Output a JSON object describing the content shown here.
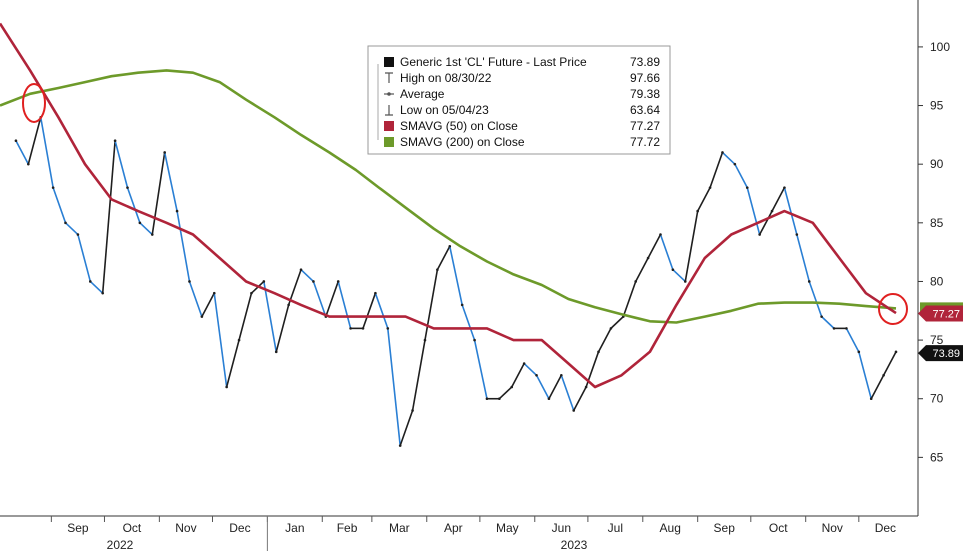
{
  "chart_data": {
    "type": "line",
    "title": "",
    "xlabel": "",
    "ylabel": "",
    "ylim": [
      60,
      104
    ],
    "grid": false,
    "y_axis_side": "right",
    "y_ticks": [
      "65",
      "70",
      "75",
      "80",
      "85",
      "90",
      "95",
      "100"
    ],
    "months": [
      "Sep",
      "Oct",
      "Nov",
      "Dec",
      "Jan",
      "Feb",
      "Mar",
      "Apr",
      "May",
      "Jun",
      "Jul",
      "Aug",
      "Sep",
      "Oct",
      "Nov",
      "Dec"
    ],
    "years": [
      "2022",
      "2023"
    ],
    "legend": {
      "placement": "top-center",
      "rows": [
        {
          "icon": "square-icon",
          "label": "Generic 1st 'CL' Future - Last Price",
          "value": "73.89",
          "color": "#111111"
        },
        {
          "icon": "high-marker-icon",
          "label": "High on 08/30/22",
          "value": "97.66",
          "color": "#555555"
        },
        {
          "icon": "average-marker-icon",
          "label": "Average",
          "value": "79.38",
          "color": "#555555"
        },
        {
          "icon": "low-marker-icon",
          "label": "Low on 05/04/23",
          "value": "63.64",
          "color": "#555555"
        },
        {
          "icon": "square-icon",
          "label": "SMAVG (50)  on Close",
          "value": "77.27",
          "color": "#b0243a"
        },
        {
          "icon": "square-icon",
          "label": "SMAVG (200)  on Close",
          "value": "77.72",
          "color": "#6d9a2a"
        }
      ]
    },
    "badges": [
      {
        "value": "77.27",
        "color": "#b0243a"
      },
      {
        "value": "73.89",
        "color": "#111111"
      }
    ],
    "series": [
      {
        "name": "Generic 1st 'CL' Future - Last Price",
        "color": "#1f1f1f",
        "down_color": "#2a7fd4",
        "x": [
          "2022-08-12",
          "2022-08-19",
          "2022-08-26",
          "2022-09-02",
          "2022-09-09",
          "2022-09-16",
          "2022-09-23",
          "2022-09-30",
          "2022-10-07",
          "2022-10-14",
          "2022-10-21",
          "2022-10-28",
          "2022-11-04",
          "2022-11-11",
          "2022-11-18",
          "2022-11-25",
          "2022-12-02",
          "2022-12-09",
          "2022-12-16",
          "2022-12-23",
          "2022-12-30",
          "2023-01-06",
          "2023-01-13",
          "2023-01-20",
          "2023-01-27",
          "2023-02-03",
          "2023-02-10",
          "2023-02-17",
          "2023-02-24",
          "2023-03-03",
          "2023-03-10",
          "2023-03-17",
          "2023-03-24",
          "2023-03-31",
          "2023-04-07",
          "2023-04-14",
          "2023-04-21",
          "2023-04-28",
          "2023-05-05",
          "2023-05-12",
          "2023-05-19",
          "2023-05-26",
          "2023-06-02",
          "2023-06-09",
          "2023-06-16",
          "2023-06-23",
          "2023-06-30",
          "2023-07-07",
          "2023-07-14",
          "2023-07-21",
          "2023-07-28",
          "2023-08-04",
          "2023-08-11",
          "2023-08-18",
          "2023-08-25",
          "2023-09-01",
          "2023-09-08",
          "2023-09-15",
          "2023-09-22",
          "2023-09-29",
          "2023-10-06",
          "2023-10-13",
          "2023-10-20",
          "2023-10-27",
          "2023-11-03",
          "2023-11-10",
          "2023-11-17",
          "2023-11-24",
          "2023-12-01",
          "2023-12-08",
          "2023-12-15",
          "2023-12-22"
        ],
        "values": [
          92,
          90,
          94,
          88,
          85,
          84,
          80,
          79,
          92,
          88,
          85,
          84,
          91,
          86,
          80,
          77,
          79,
          71,
          75,
          79,
          80,
          74,
          78,
          81,
          80,
          77,
          80,
          76,
          76,
          79,
          76,
          66,
          69,
          75,
          81,
          83,
          78,
          75,
          70,
          70,
          71,
          73,
          72,
          70,
          72,
          69,
          71,
          74,
          76,
          77,
          80,
          82,
          84,
          81,
          80,
          86,
          88,
          91,
          90,
          88,
          84,
          86,
          88,
          84,
          80,
          77,
          76,
          76,
          74,
          70,
          72,
          74
        ]
      },
      {
        "name": "SMAVG (50)  on Close",
        "color": "#b0243a",
        "x": [
          "2022-08-03",
          "2022-08-20",
          "2022-09-05",
          "2022-09-20",
          "2022-10-05",
          "2022-10-20",
          "2022-11-05",
          "2022-11-20",
          "2022-12-05",
          "2022-12-20",
          "2023-01-05",
          "2023-01-20",
          "2023-02-05",
          "2023-02-20",
          "2023-03-05",
          "2023-03-20",
          "2023-04-05",
          "2023-04-20",
          "2023-05-05",
          "2023-05-20",
          "2023-06-05",
          "2023-06-20",
          "2023-07-05",
          "2023-07-20",
          "2023-08-05",
          "2023-08-20",
          "2023-09-05",
          "2023-09-20",
          "2023-10-05",
          "2023-10-20",
          "2023-11-05",
          "2023-11-20",
          "2023-12-05",
          "2023-12-22"
        ],
        "values": [
          102,
          98,
          94,
          90,
          87,
          86,
          85,
          84,
          82,
          80,
          79,
          78,
          77,
          77,
          77,
          77,
          76,
          76,
          76,
          75,
          75,
          73,
          71,
          72,
          74,
          78,
          82,
          84,
          85,
          86,
          85,
          82,
          79,
          77.3
        ]
      },
      {
        "name": "SMAVG (200)  on Close",
        "color": "#6d9a2a",
        "x": [
          "2022-08-03",
          "2022-08-20",
          "2022-09-05",
          "2022-09-20",
          "2022-10-05",
          "2022-10-20",
          "2022-11-05",
          "2022-11-20",
          "2022-12-05",
          "2022-12-20",
          "2023-01-05",
          "2023-01-20",
          "2023-02-05",
          "2023-02-20",
          "2023-03-05",
          "2023-03-20",
          "2023-04-05",
          "2023-04-20",
          "2023-05-05",
          "2023-05-20",
          "2023-06-05",
          "2023-06-20",
          "2023-07-05",
          "2023-07-20",
          "2023-08-05",
          "2023-08-20",
          "2023-09-05",
          "2023-09-20",
          "2023-10-05",
          "2023-10-20",
          "2023-11-05",
          "2023-11-20",
          "2023-12-05",
          "2023-12-22"
        ],
        "values": [
          95,
          96,
          96.5,
          97,
          97.5,
          97.8,
          98,
          97.8,
          97,
          95.5,
          94,
          92.5,
          91,
          89.5,
          88,
          86.3,
          84.5,
          83,
          81.7,
          80.6,
          79.7,
          78.5,
          77.8,
          77.2,
          76.6,
          76.5,
          77,
          77.5,
          78.1,
          78.2,
          78.2,
          78.1,
          77.9,
          77.7
        ]
      }
    ]
  }
}
